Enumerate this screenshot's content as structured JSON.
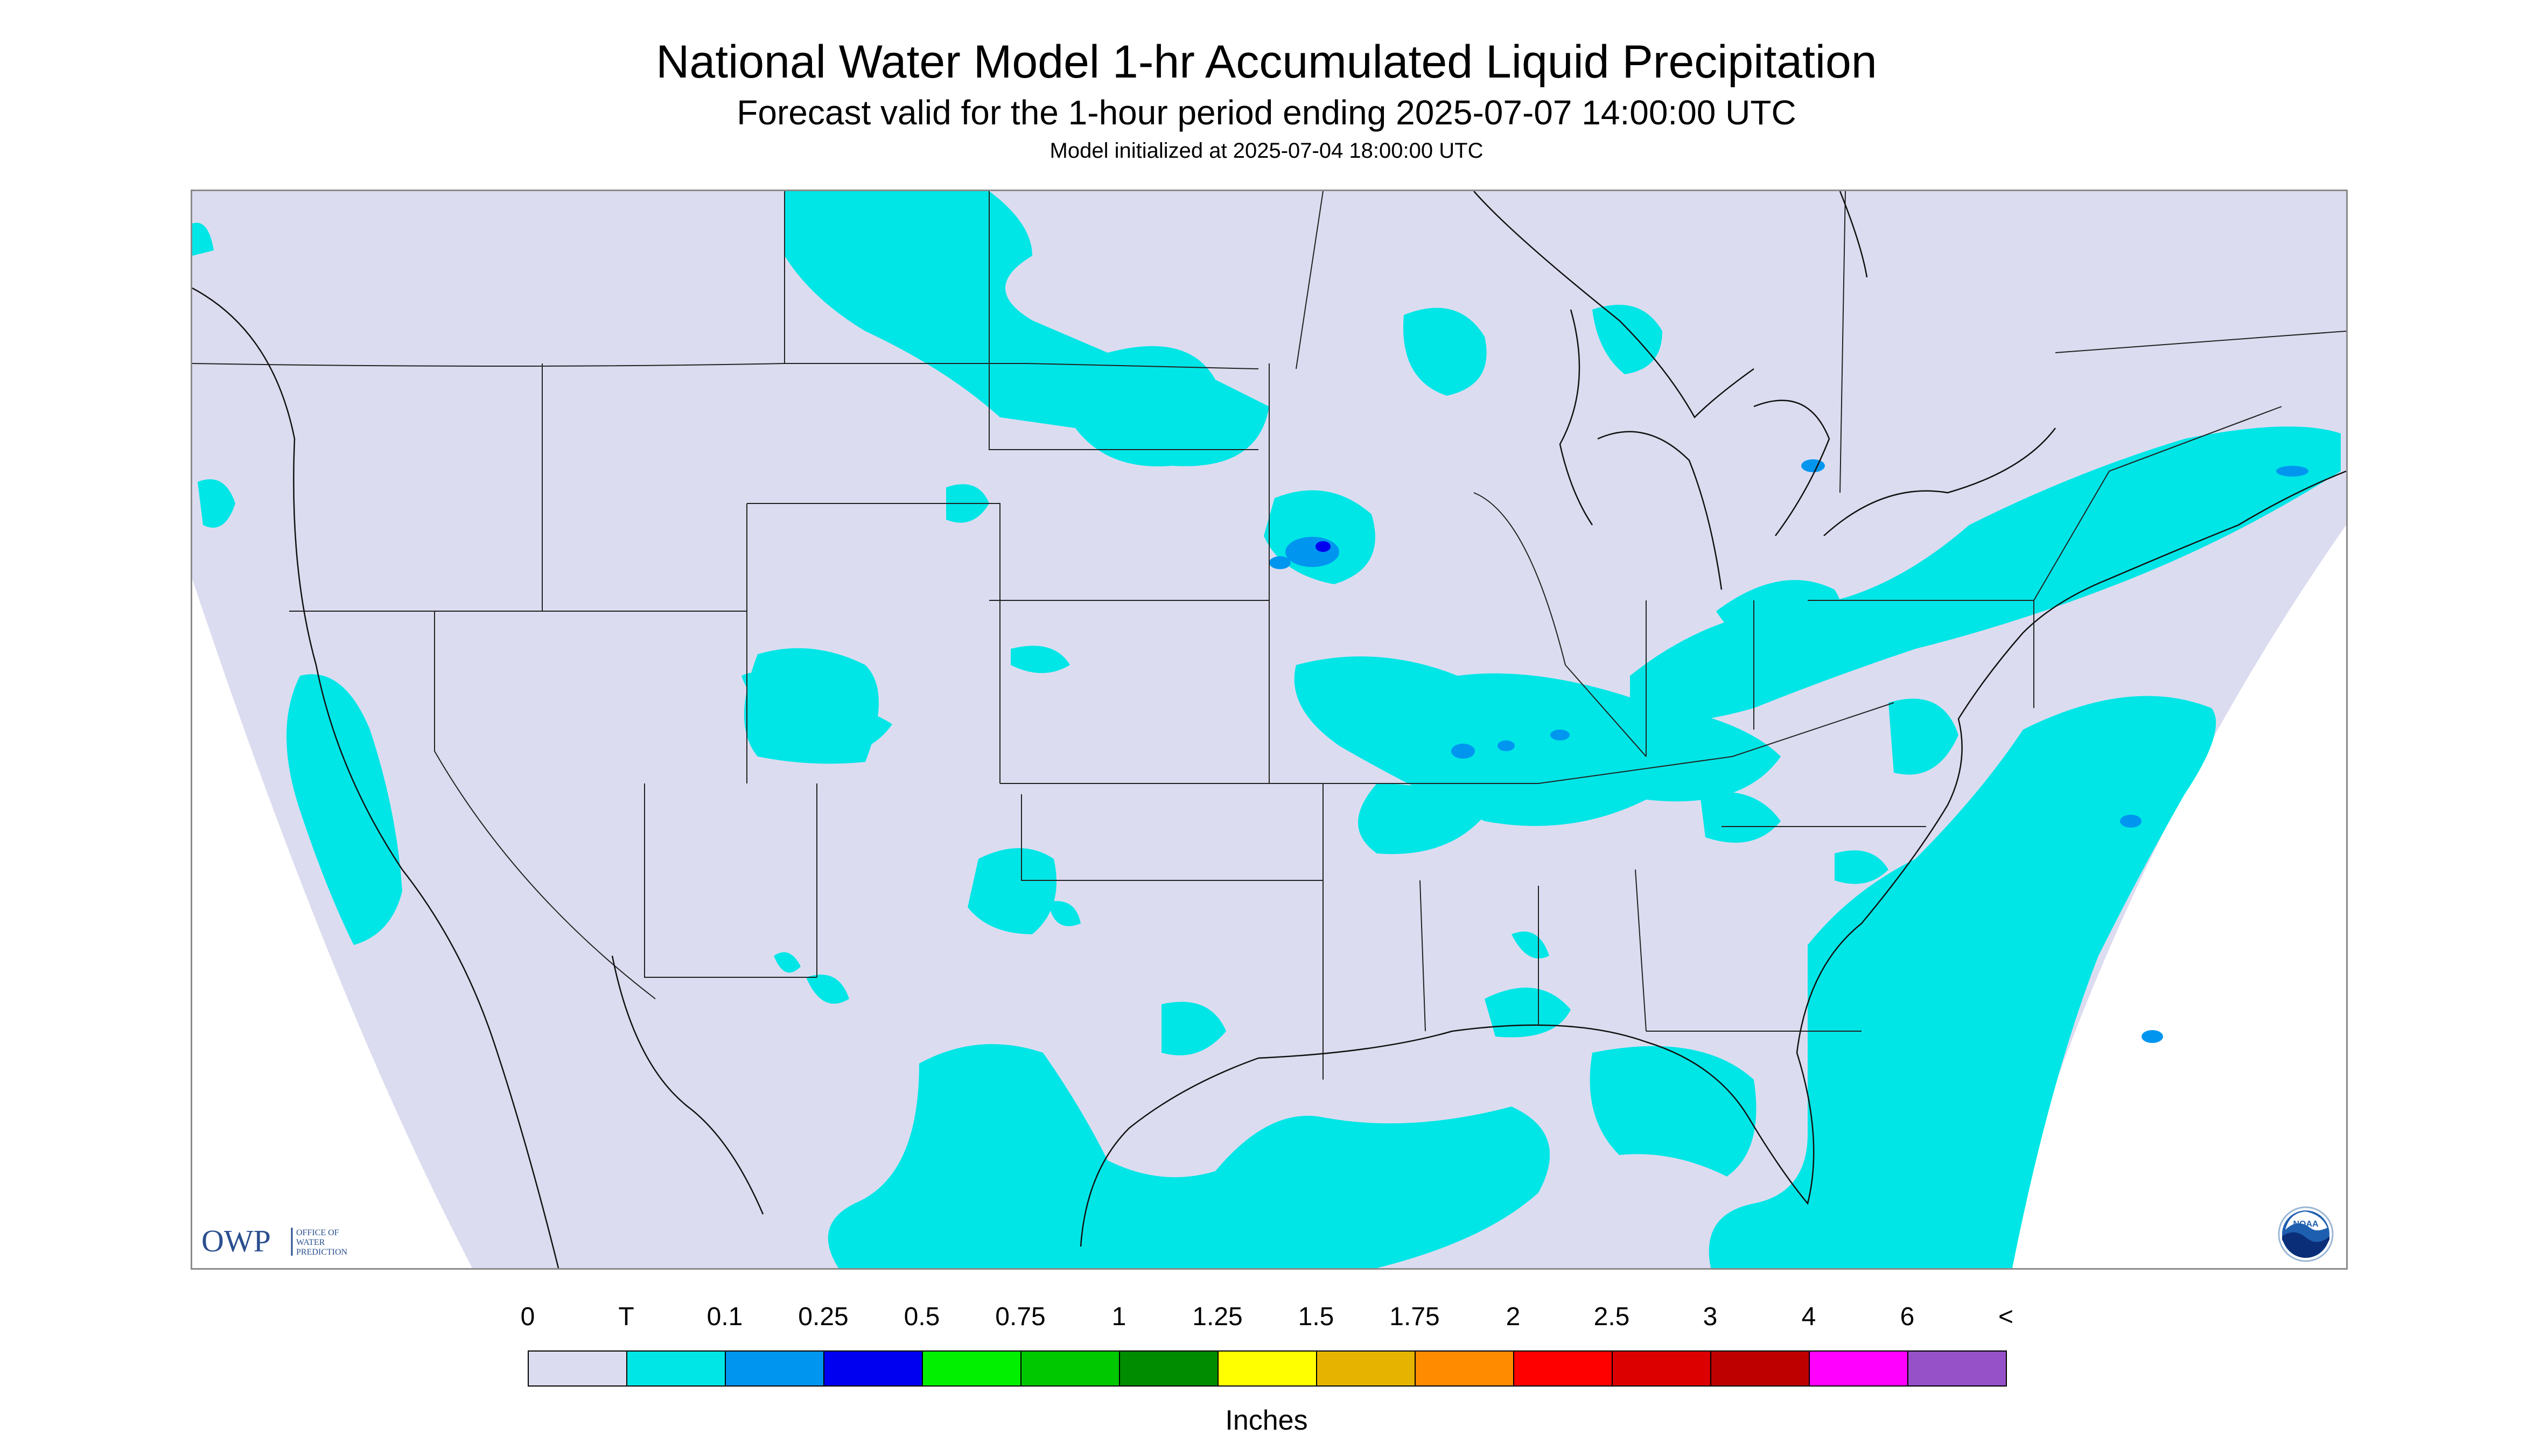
{
  "title": "National Water Model 1-hr Accumulated Liquid Precipitation",
  "subtitle": "Forecast valid for the 1-hour period ending 2025-07-07 14:00:00 UTC",
  "init_line": "Model initialized at 2025-07-04 18:00:00 UTC",
  "logos": {
    "owp_letters": "OWP",
    "owp_text": [
      "OFFICE OF",
      "WATER",
      "PREDICTION"
    ],
    "noaa_text": "NOAA"
  },
  "legend": {
    "ticks": [
      "0",
      "T",
      "0.1",
      "0.25",
      "0.5",
      "0.75",
      "1",
      "1.25",
      "1.5",
      "1.75",
      "2",
      "2.5",
      "3",
      "4",
      "6",
      "<"
    ],
    "colors": [
      "#dcdcf0",
      "#00e6e6",
      "#0096f0",
      "#0000f0",
      "#00f000",
      "#00c800",
      "#008c00",
      "#ffff00",
      "#e6b400",
      "#ff8c00",
      "#ff0000",
      "#dc0000",
      "#be0000",
      "#ff00ff",
      "#9650c8"
    ],
    "units": "Inches"
  },
  "colors": {
    "background_no_data": "#ffffff",
    "zero_precip": "#dcdcf0",
    "trace": "#00e6e6",
    "light": "#0096f0",
    "moderate": "#0000f0"
  }
}
